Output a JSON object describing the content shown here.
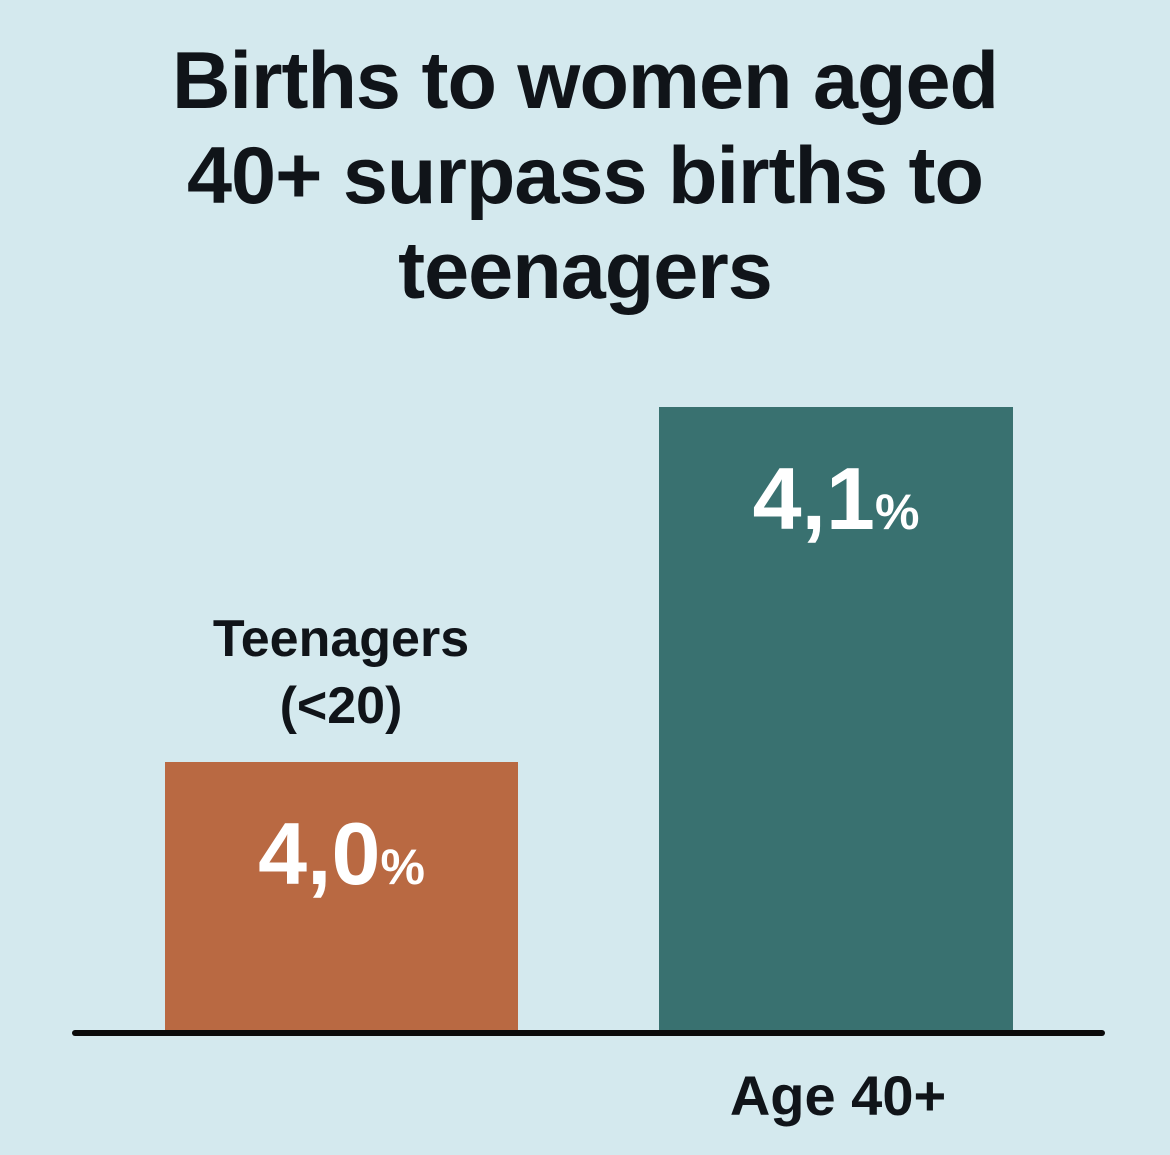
{
  "chart_data": {
    "type": "bar",
    "title": "Births to women aged 40+ surpass births to teenagers",
    "categories": [
      "Teenagers (<20)",
      "Age 40+"
    ],
    "values": [
      4.0,
      4.1
    ],
    "unit": "%",
    "value_labels": [
      "4,0%",
      "4,1%"
    ],
    "ylim": [
      0,
      4.4
    ],
    "grid": false,
    "legend": false,
    "bar_colors": [
      "#b96942",
      "#397170"
    ],
    "background_color": "#d4e9ee",
    "value_label_color": "#ffffff",
    "axis_line_color": "#0a0a0a",
    "title_color": "#101419",
    "decimal_separator": ","
  },
  "title_display": "Births to women aged\n40+ surpass births to\nteenagers",
  "bars": [
    {
      "name": "teenagers",
      "category_label": "Teenagers\n(<20)",
      "value_number": "4,0",
      "percent_sign": "%"
    },
    {
      "name": "age-40-plus",
      "category_label": "Age 40+",
      "value_number": "4,1",
      "percent_sign": "%"
    }
  ]
}
